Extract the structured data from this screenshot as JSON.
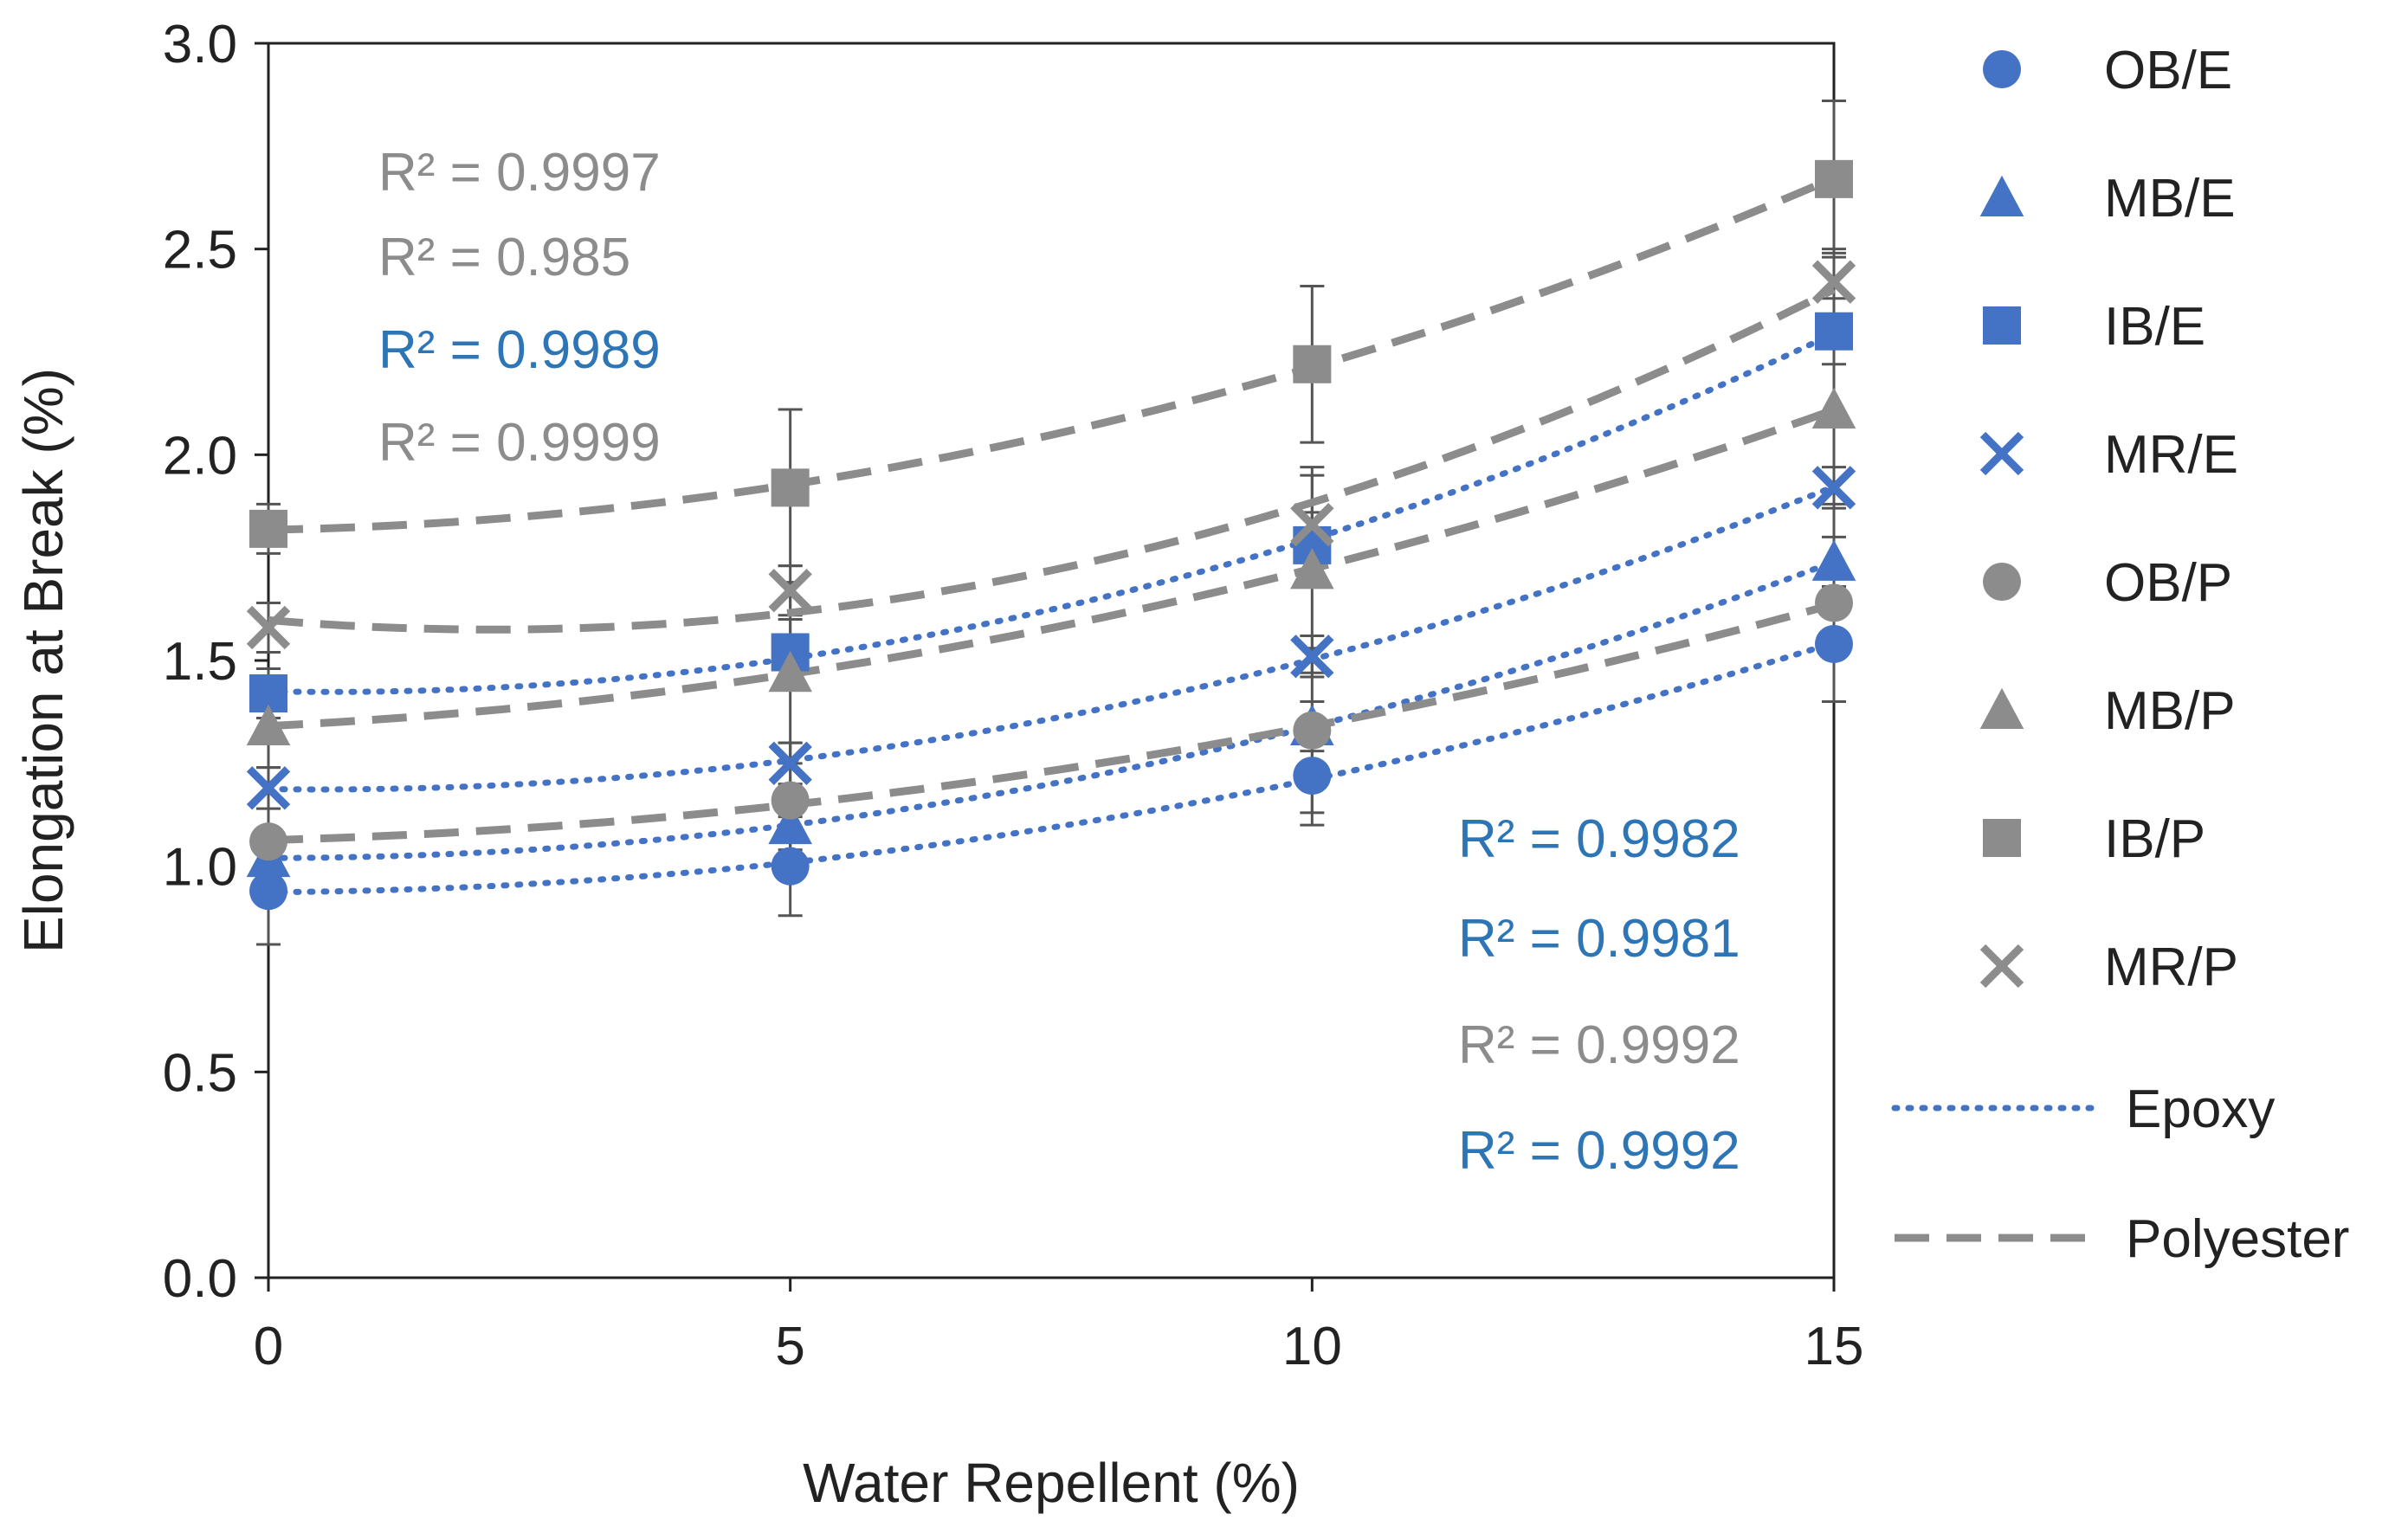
{
  "chart_data": {
    "type": "scatter",
    "xlabel": "Water Repellent (%)",
    "ylabel": "Elongation at Break  (%)",
    "xlim": [
      0,
      15
    ],
    "ylim": [
      0,
      3
    ],
    "x_ticks": [
      "0",
      "5",
      "10",
      "15"
    ],
    "y_ticks": [
      "0.0",
      "0.5",
      "1.0",
      "1.5",
      "2.0",
      "2.5",
      "3.0"
    ],
    "grid": false,
    "legend_position": "right",
    "x": [
      0,
      5,
      10,
      15
    ],
    "series": [
      {
        "name": "OB/E",
        "marker": "circle",
        "color": "#4472C4",
        "values": [
          0.94,
          1.0,
          1.22,
          1.54
        ],
        "error": [
          0.13,
          0.12,
          0.12,
          0.14
        ]
      },
      {
        "name": "MB/E",
        "marker": "triangle",
        "color": "#4472C4",
        "values": [
          1.02,
          1.1,
          1.34,
          1.74
        ],
        "error": [
          0.06,
          0.06,
          0.06,
          0.06
        ]
      },
      {
        "name": "IB/E",
        "marker": "square",
        "color": "#4472C4",
        "values": [
          1.42,
          1.52,
          1.78,
          2.3
        ],
        "error": [
          0.06,
          0.08,
          0.08,
          0.08
        ]
      },
      {
        "name": "MR/E",
        "marker": "x",
        "color": "#4472C4",
        "values": [
          1.19,
          1.25,
          1.51,
          1.92
        ],
        "error": [
          0.05,
          0.05,
          0.05,
          0.05
        ]
      },
      {
        "name": "OB/P",
        "marker": "circle",
        "color": "#8C8C8C",
        "values": [
          1.06,
          1.16,
          1.33,
          1.64
        ],
        "error": [
          0.25,
          0.14,
          0.2,
          0.24
        ]
      },
      {
        "name": "MB/P",
        "marker": "triangle",
        "color": "#8C8C8C",
        "values": [
          1.34,
          1.47,
          1.72,
          2.11
        ],
        "error": [
          0.1,
          0.22,
          0.25,
          0.38
        ]
      },
      {
        "name": "IB/P",
        "marker": "square",
        "color": "#8C8C8C",
        "values": [
          1.82,
          1.92,
          2.22,
          2.67
        ],
        "error": [
          0.06,
          0.19,
          0.19,
          0.19
        ]
      },
      {
        "name": "MR/P",
        "marker": "x",
        "color": "#8C8C8C",
        "values": [
          1.58,
          1.67,
          1.83,
          2.42
        ],
        "error": [
          0.06,
          0.06,
          0.12,
          0.08
        ]
      }
    ],
    "trendlines": [
      {
        "group": "Epoxy",
        "style": "dotted",
        "color": "#4472C4",
        "degree": 2
      },
      {
        "group": "Polyester",
        "style": "dashed",
        "color": "#8C8C8C",
        "degree": 2
      }
    ],
    "legend_lines": [
      {
        "name": "Epoxy",
        "style": "dotted",
        "color": "#4472C4"
      },
      {
        "name": "Polyester",
        "style": "dashed",
        "color": "#8C8C8C"
      }
    ],
    "annotations": [
      {
        "text": "R² = 0.9997",
        "color": "#8C8C8C"
      },
      {
        "text": "R² = 0.985",
        "color": "#8C8C8C"
      },
      {
        "text": "R² = 0.9989",
        "color": "#2E75B6"
      },
      {
        "text": "R² = 0.9999",
        "color": "#8C8C8C"
      },
      {
        "text": "R² = 0.9982",
        "color": "#2E75B6"
      },
      {
        "text": "R² = 0.9981",
        "color": "#2E75B6"
      },
      {
        "text": "R² = 0.9992",
        "color": "#8C8C8C"
      },
      {
        "text": "R² = 0.9992",
        "color": "#2E75B6"
      }
    ]
  }
}
